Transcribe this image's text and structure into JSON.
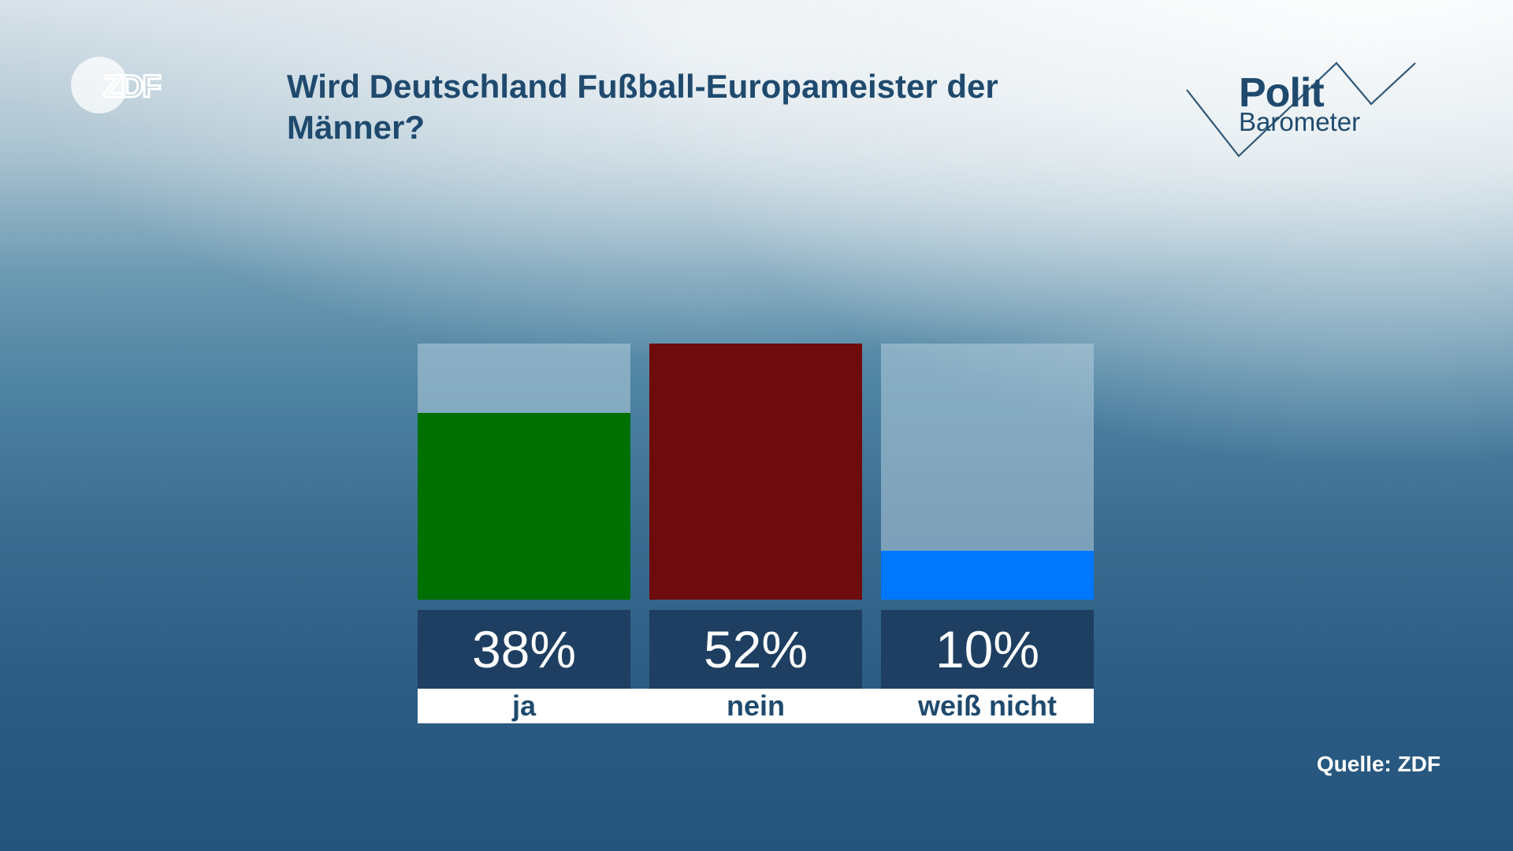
{
  "brand": {
    "zdf_logo_text": "ZDF",
    "polit_word": "Polit",
    "barometer_word": "Barometer"
  },
  "colors": {
    "title": "#1f4a6e",
    "value_box": "#1e3f61",
    "bar_background": "#b4cddc"
  },
  "chart_data": {
    "type": "bar",
    "title": "Wird Deutschland Fußball-Europameister der Männer?",
    "categories": [
      "ja",
      "nein",
      "weiß nicht"
    ],
    "values": [
      38,
      52,
      10
    ],
    "value_labels": [
      "38%",
      "52%",
      "10%"
    ],
    "colors": [
      "#007000",
      "#6e0b0c",
      "#0077ff"
    ],
    "ylim": [
      0,
      52
    ],
    "unit": "%"
  },
  "source": "Quelle: ZDF"
}
